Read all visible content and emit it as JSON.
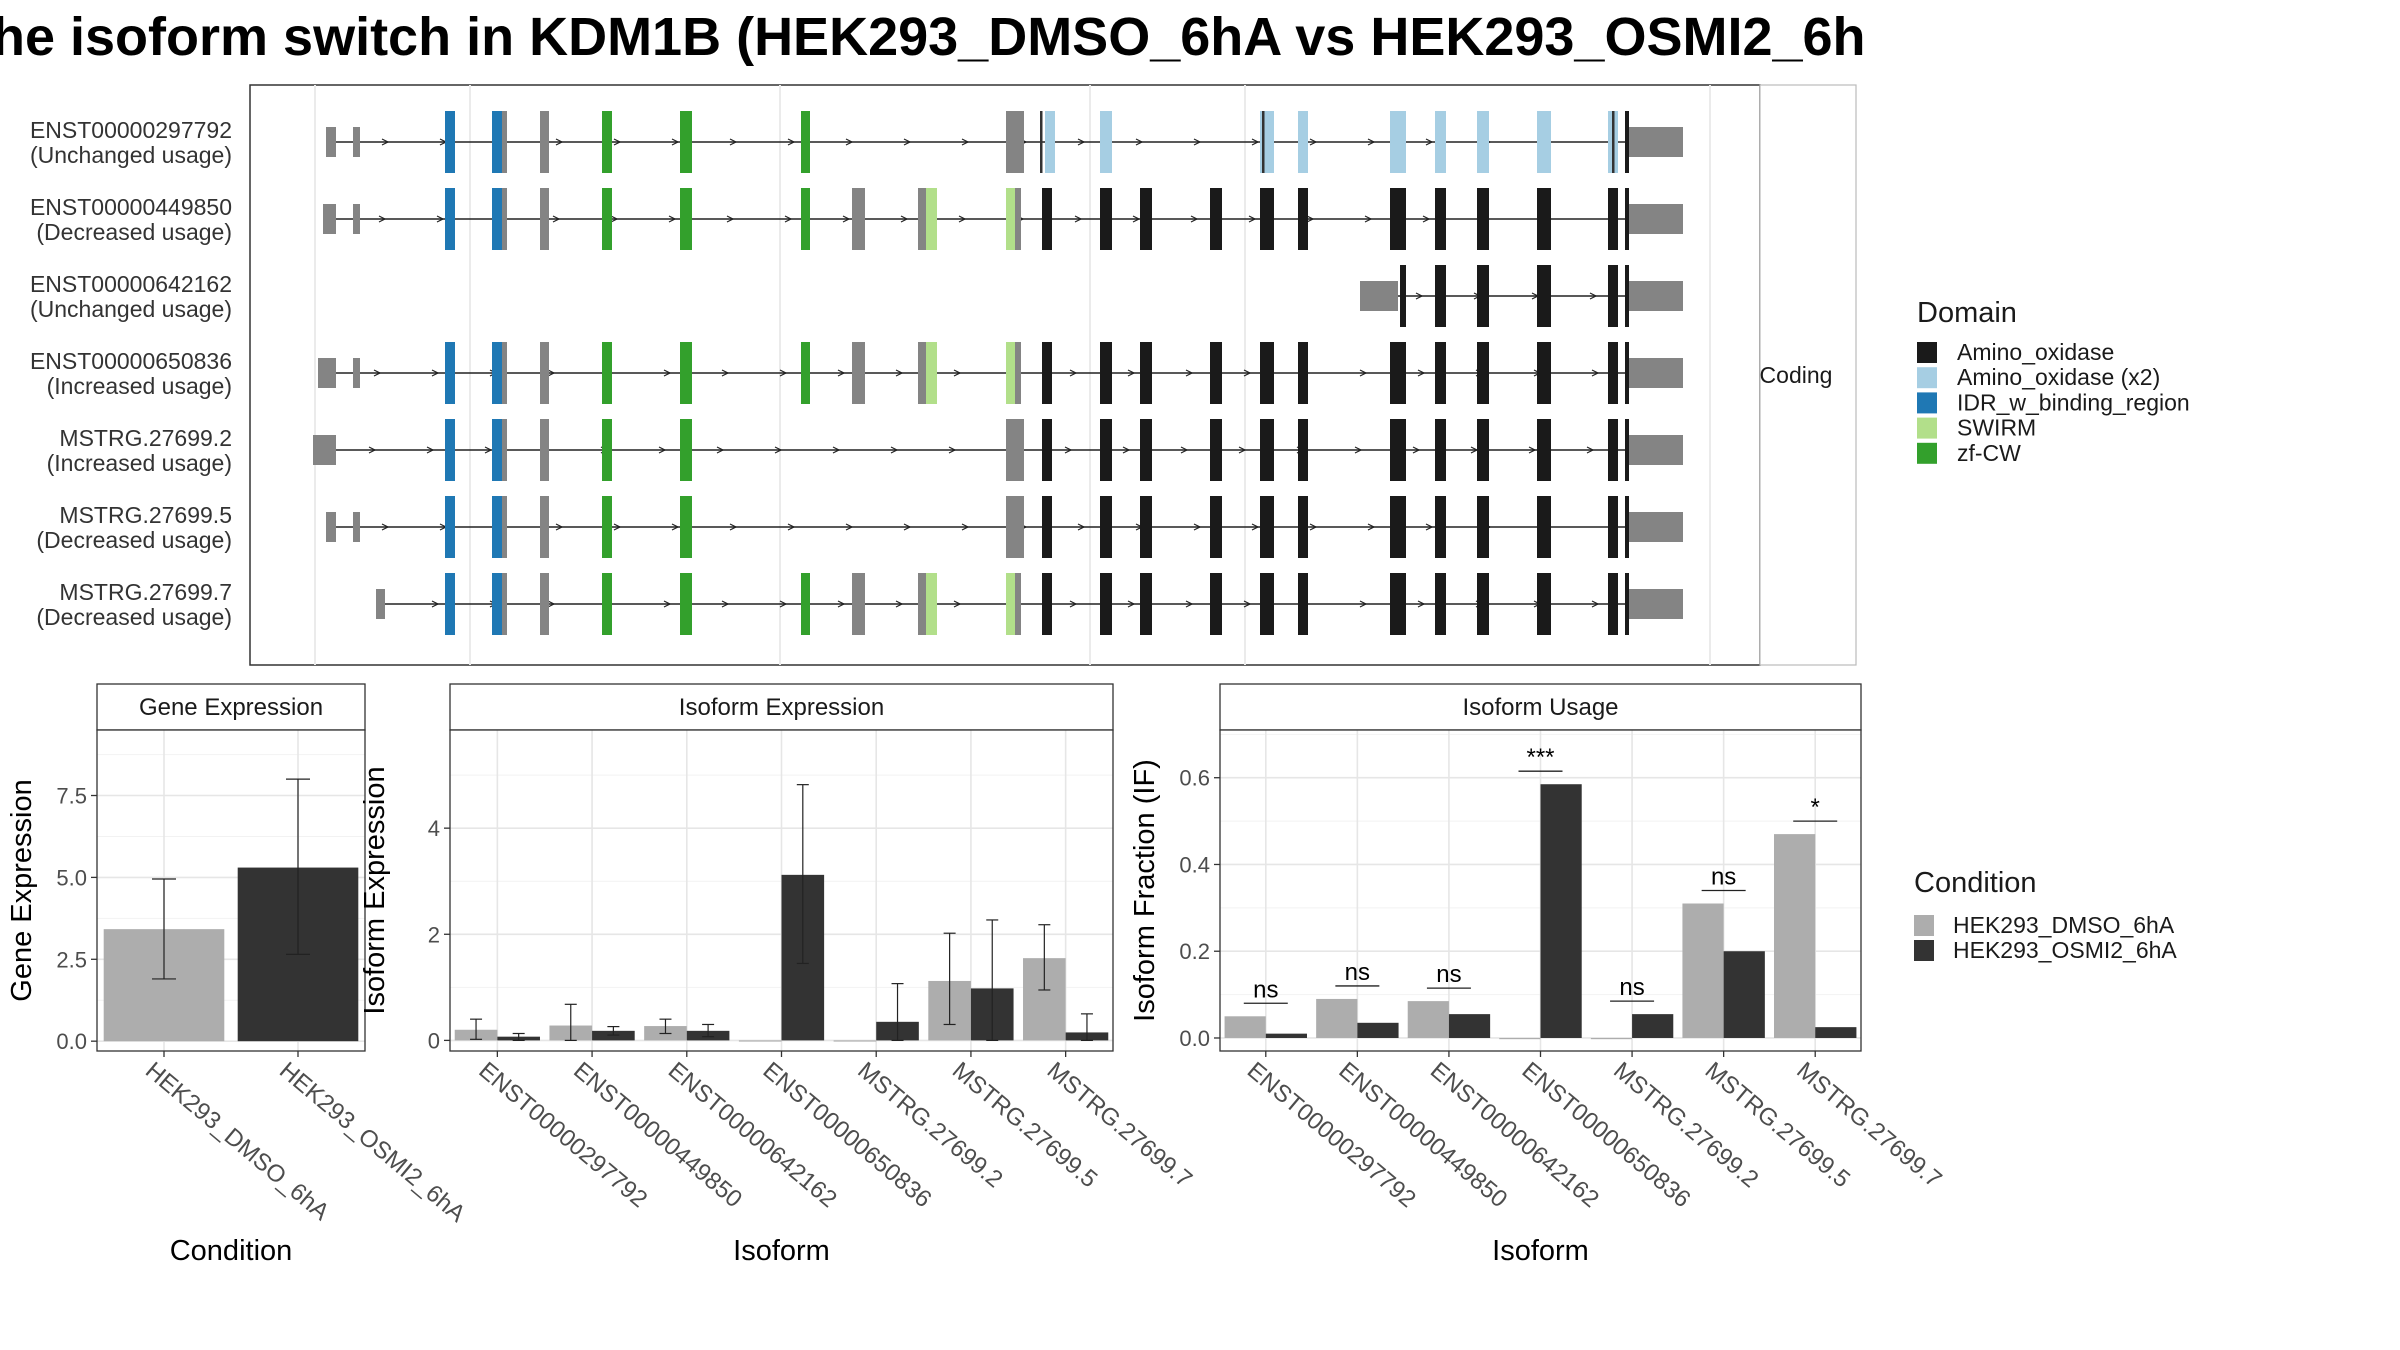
{
  "title": "he isoform switch in KDM1B (HEK293_DMSO_6hA vs HEK293_OSMI2_6h",
  "colors": {
    "dmso": "#ADADAD",
    "osmi": "#333333",
    "noncoding_exon": "#848484",
    "Amino_oxidase": "#1a1a1a",
    "Amino_oxidase (x2)": "#A6CEE3",
    "IDR_w_binding_region": "#1F78B4",
    "SWIRM": "#B2DF8A",
    "zf-CW": "#33A02C"
  },
  "transcript_panel": {
    "strip_label": "Coding",
    "transcripts": [
      {
        "id": "ENST00000297792",
        "usage": "(Unchanged usage)"
      },
      {
        "id": "ENST00000449850",
        "usage": "(Decreased usage)"
      },
      {
        "id": "ENST00000642162",
        "usage": "(Unchanged usage)"
      },
      {
        "id": "ENST00000650836",
        "usage": "(Increased usage)"
      },
      {
        "id": "MSTRG.27699.2",
        "usage": "(Increased usage)"
      },
      {
        "id": "MSTRG.27699.5",
        "usage": "(Decreased usage)"
      },
      {
        "id": "MSTRG.27699.7",
        "usage": "(Decreased usage)"
      }
    ]
  },
  "domain_legend": {
    "title": "Domain",
    "items": [
      "Amino_oxidase",
      "Amino_oxidase (x2)",
      "IDR_w_binding_region",
      "SWIRM",
      "zf-CW"
    ]
  },
  "condition_legend": {
    "title": "Condition",
    "items": [
      "HEK293_DMSO_6hA",
      "HEK293_OSMI2_6hA"
    ]
  },
  "chart_data": [
    {
      "type": "bar",
      "strip": "Gene Expression",
      "xlabel": "Condition",
      "ylabel": "Gene Expression",
      "ylim": [
        -0.3,
        9.5
      ],
      "yticks": [
        "0.0",
        "2.5",
        "5.0",
        "7.5"
      ],
      "categories": [
        "HEK293_DMSO_6hA",
        "HEK293_OSMI2_6hA"
      ],
      "values": [
        3.42,
        5.3
      ],
      "err_low": [
        1.9,
        2.65
      ],
      "err_high": [
        4.95,
        8.0
      ]
    },
    {
      "type": "bar",
      "strip": "Isoform Expression",
      "xlabel": "Isoform",
      "ylabel": "Isoform Expression",
      "ylim": [
        -0.2,
        5.85
      ],
      "yticks": [
        "0",
        "2",
        "4"
      ],
      "categories": [
        "ENST00000297792",
        "ENST00000449850",
        "ENST00000642162",
        "ENST00000650836",
        "MSTRG.27699.2",
        "MSTRG.27699.5",
        "MSTRG.27699.7"
      ],
      "series": [
        {
          "name": "HEK293_DMSO_6hA",
          "values": [
            0.2,
            0.28,
            0.27,
            0.0,
            0.0,
            1.12,
            1.55
          ],
          "err_low": [
            0.02,
            0.0,
            0.13,
            0.0,
            0.0,
            0.3,
            0.95
          ],
          "err_high": [
            0.4,
            0.68,
            0.4,
            0.0,
            0.0,
            2.02,
            2.18
          ]
        },
        {
          "name": "HEK293_OSMI2_6hA",
          "values": [
            0.07,
            0.18,
            0.18,
            3.12,
            0.35,
            0.98,
            0.15
          ],
          "err_low": [
            0.0,
            0.1,
            0.07,
            1.45,
            0.0,
            0.0,
            0.0
          ],
          "err_high": [
            0.13,
            0.26,
            0.3,
            4.82,
            1.07,
            2.27,
            0.5
          ]
        }
      ]
    },
    {
      "type": "bar",
      "strip": "Isoform Usage",
      "xlabel": "Isoform",
      "ylabel": "Isoform Fraction (IF)",
      "ylim": [
        -0.03,
        0.71
      ],
      "yticks": [
        "0.0",
        "0.2",
        "0.4",
        "0.6"
      ],
      "categories": [
        "ENST00000297792",
        "ENST00000449850",
        "ENST00000642162",
        "ENST00000650836",
        "MSTRG.27699.2",
        "MSTRG.27699.5",
        "MSTRG.27699.7"
      ],
      "series": [
        {
          "name": "HEK293_DMSO_6hA",
          "values": [
            0.05,
            0.09,
            0.085,
            0.0,
            0.0,
            0.31,
            0.47
          ]
        },
        {
          "name": "HEK293_OSMI2_6hA",
          "values": [
            0.01,
            0.035,
            0.055,
            0.585,
            0.055,
            0.2,
            0.025
          ]
        }
      ],
      "significance": [
        "ns",
        "ns",
        "ns",
        "***",
        "ns",
        "ns",
        "*"
      ]
    }
  ]
}
